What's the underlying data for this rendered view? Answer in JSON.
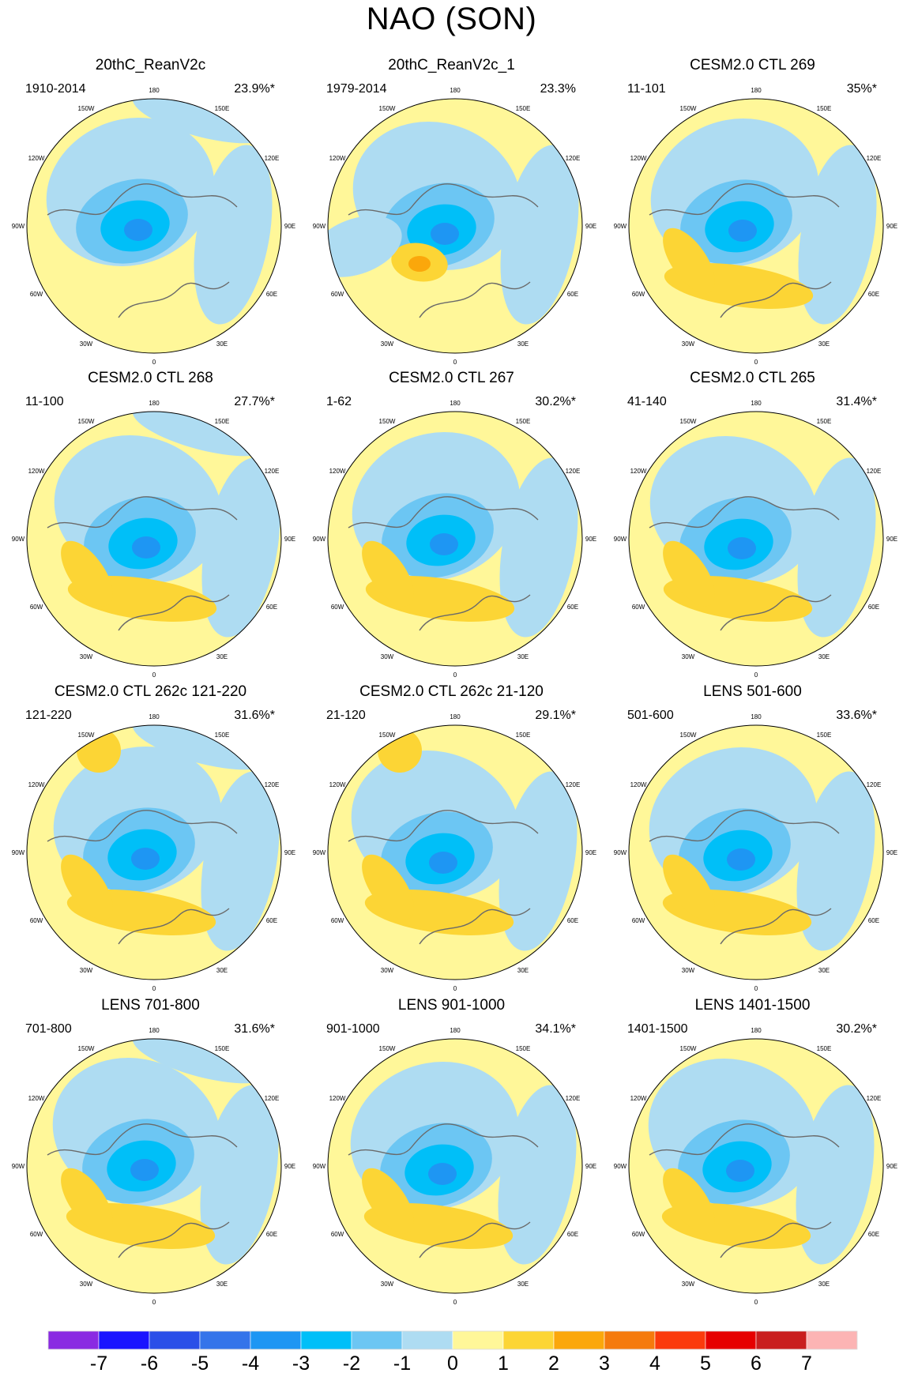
{
  "title": "NAO (SON)",
  "panels": [
    {
      "title": "20thC_ReanV2c",
      "years": "1910-2014",
      "percent": "23.9%*"
    },
    {
      "title": "20thC_ReanV2c_1",
      "years": "1979-2014",
      "percent": "23.3%"
    },
    {
      "title": "CESM2.0 CTL 269",
      "years": "11-101",
      "percent": "35%*"
    },
    {
      "title": "CESM2.0 CTL 268",
      "years": "11-100",
      "percent": "27.7%*"
    },
    {
      "title": "CESM2.0 CTL 267",
      "years": "1-62",
      "percent": "30.2%*"
    },
    {
      "title": "CESM2.0 CTL 265",
      "years": "41-140",
      "percent": "31.4%*"
    },
    {
      "title": "CESM2.0 CTL 262c 121-220",
      "years": "121-220",
      "percent": "31.6%*"
    },
    {
      "title": "CESM2.0 CTL 262c 21-120",
      "years": "21-120",
      "percent": "29.1%*"
    },
    {
      "title": "LENS 501-600",
      "years": "501-600",
      "percent": "33.6%*"
    },
    {
      "title": "LENS 701-800",
      "years": "701-800",
      "percent": "31.6%*"
    },
    {
      "title": "LENS 901-1000",
      "years": "901-1000",
      "percent": "34.1%*"
    },
    {
      "title": "LENS 1401-1500",
      "years": "1401-1500",
      "percent": "30.2%*"
    }
  ],
  "longitude_labels": [
    "180",
    "150E",
    "120E",
    "90E",
    "60E",
    "30E",
    "0",
    "30W",
    "60W",
    "90W",
    "120W",
    "150W"
  ],
  "colorbar": {
    "labels": [
      "-7",
      "-6",
      "-5",
      "-4",
      "-3",
      "-2",
      "-1",
      "0",
      "1",
      "2",
      "3",
      "4",
      "5",
      "6",
      "7"
    ],
    "colors": [
      "#8a2be2",
      "#1a14ff",
      "#2a4fe8",
      "#3474ea",
      "#1e96f3",
      "#00bff8",
      "#6cc6f3",
      "#aedcf2",
      "#fff799",
      "#fcd535",
      "#fba70b",
      "#f57a0d",
      "#fb3a0c",
      "#e60000",
      "#c91e1e",
      "#fcb4b4"
    ]
  }
}
